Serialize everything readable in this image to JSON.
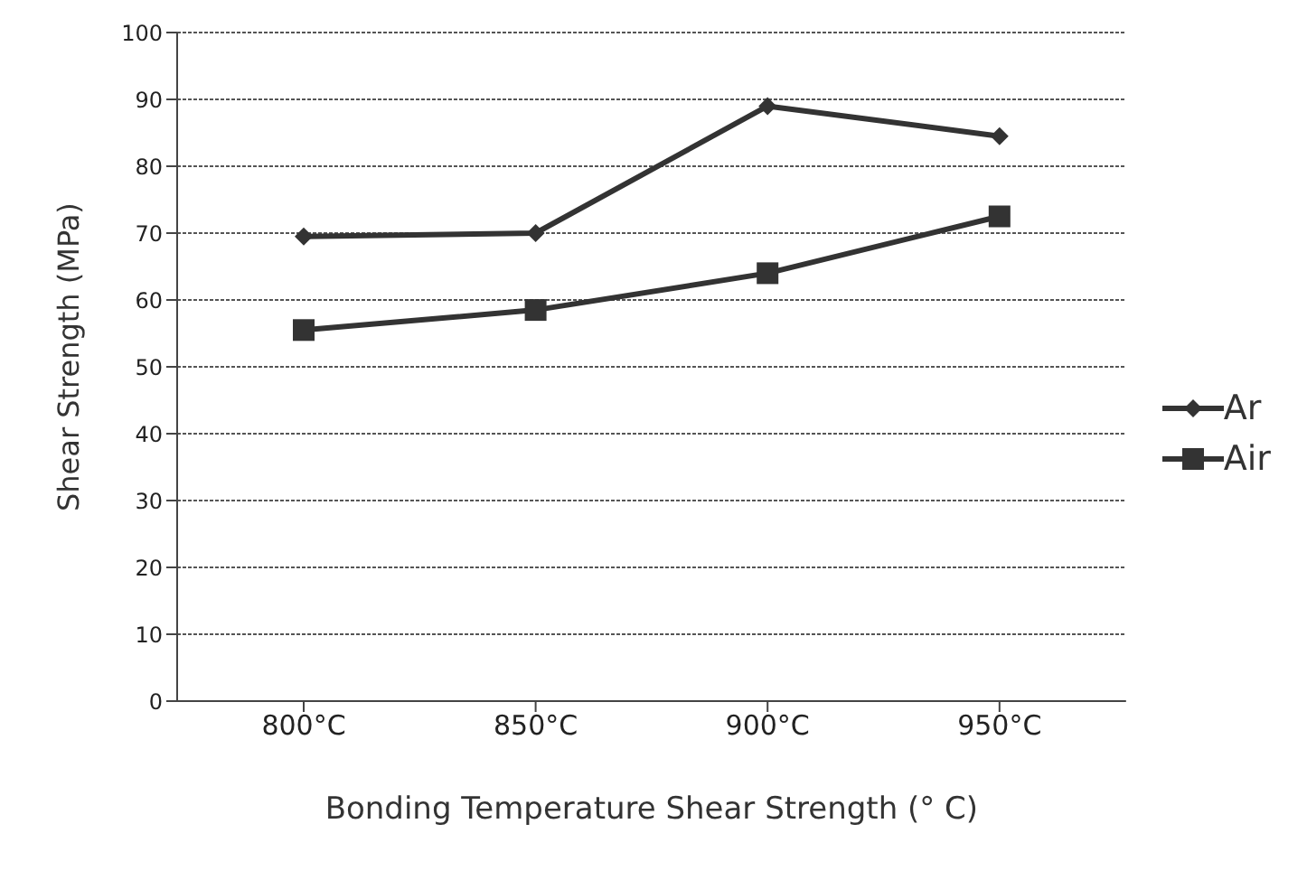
{
  "chart_data": {
    "type": "line",
    "xlabel": "Bonding Temperature Shear Strength (° C)",
    "ylabel": "Shear Strength (MPa)",
    "categories": [
      "800°C",
      "850°C",
      "900°C",
      "950°C"
    ],
    "series": [
      {
        "name": "Ar",
        "color": "#333333",
        "marker": "diamond",
        "values": [
          69.5,
          70,
          89,
          84.5
        ]
      },
      {
        "name": "Air",
        "color": "#333333",
        "marker": "square",
        "values": [
          55.5,
          58.5,
          64,
          72.5
        ]
      }
    ],
    "ylim": [
      0,
      100
    ],
    "yticks": [
      0,
      10,
      20,
      30,
      40,
      50,
      60,
      70,
      80,
      90,
      100
    ],
    "grid": "y",
    "legend": "right",
    "line_style": "solid"
  }
}
